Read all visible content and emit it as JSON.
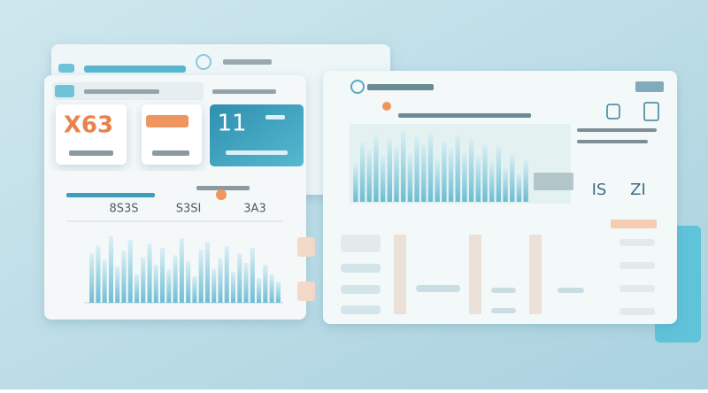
{
  "left_panel": {
    "kpis": [
      "X63",
      "11"
    ],
    "stats": [
      "8S3S",
      "S3SI",
      "3A3"
    ],
    "chart": {
      "values": [
        52,
        60,
        45,
        70,
        38,
        55,
        66,
        30,
        48,
        62,
        40,
        58,
        35,
        50,
        68,
        44,
        28,
        56,
        64,
        36,
        47,
        60,
        33,
        52,
        42,
        58,
        26,
        40,
        30,
        22
      ]
    }
  },
  "right_panel": {
    "stats": [
      "IS",
      "ZI"
    ],
    "chart": {
      "values": [
        40,
        62,
        55,
        70,
        48,
        66,
        58,
        74,
        50,
        68,
        60,
        72,
        45,
        64,
        56,
        70,
        52,
        66,
        48,
        60,
        42,
        58,
        36,
        50,
        30,
        44
      ]
    }
  }
}
